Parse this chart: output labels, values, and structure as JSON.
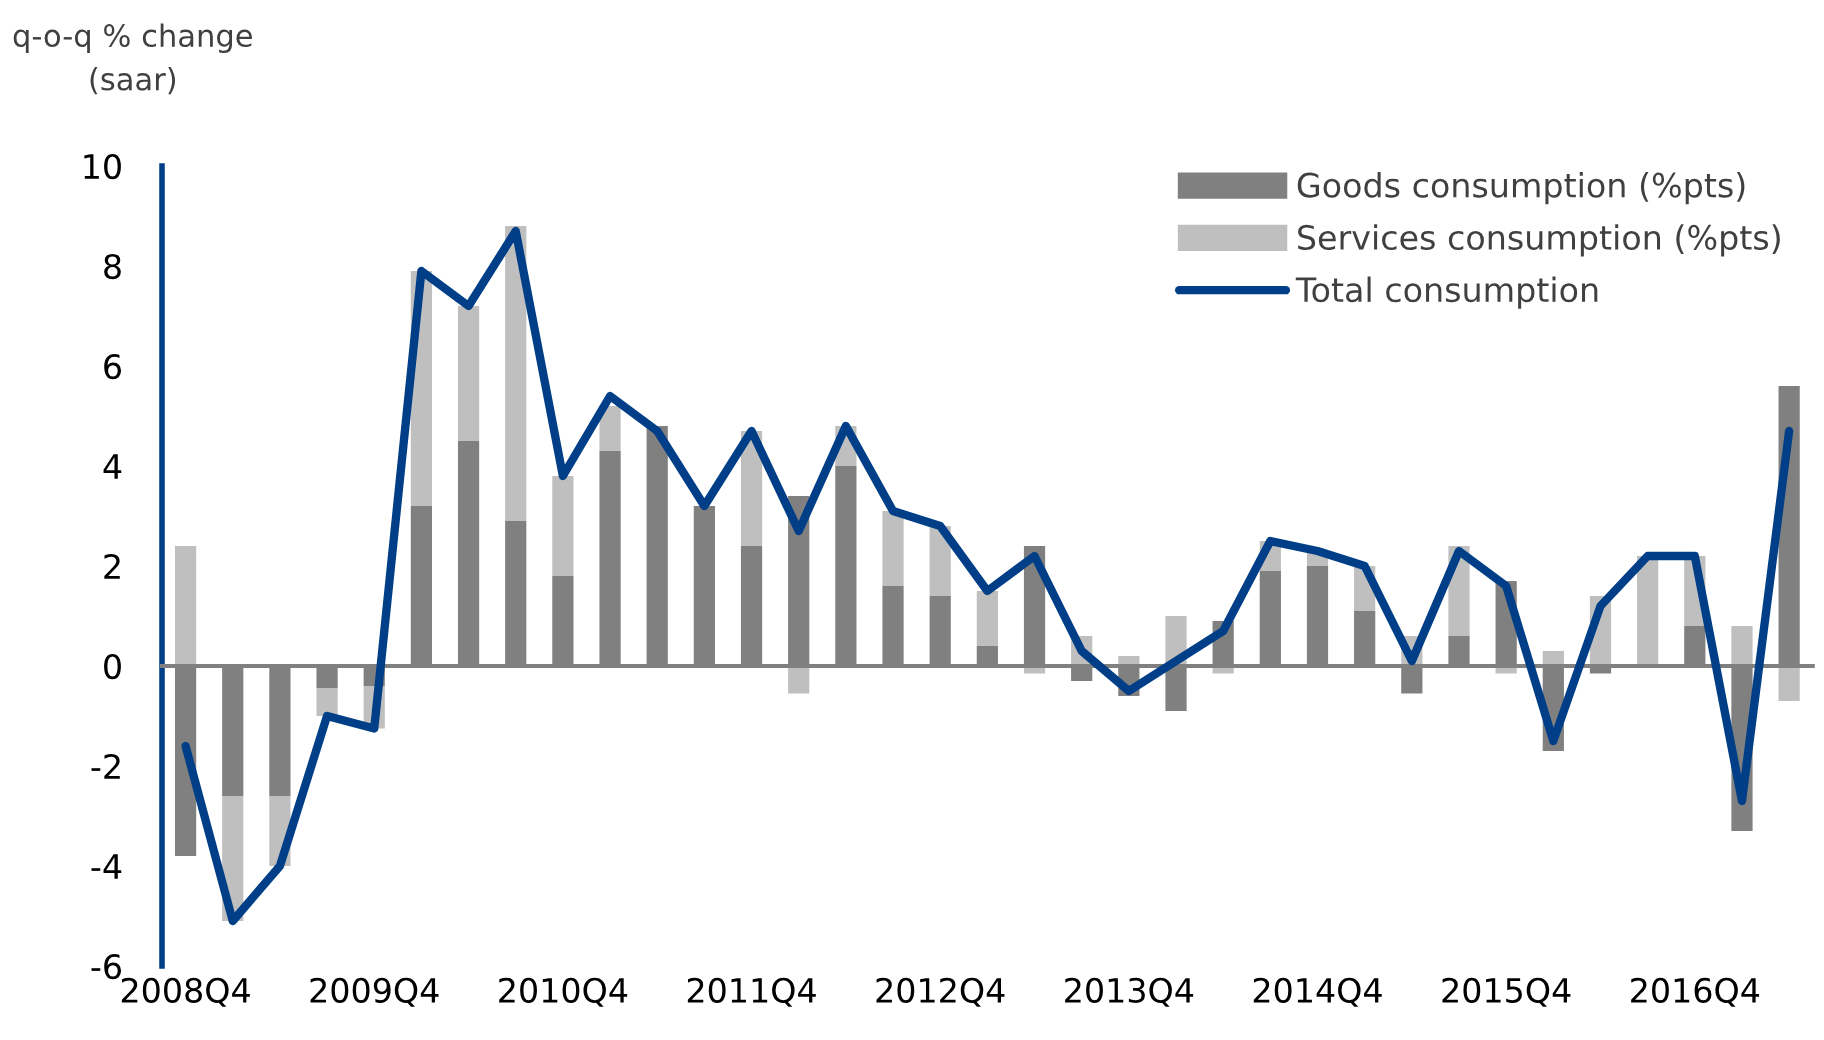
{
  "chart_data": {
    "type": "bar",
    "stacked": true,
    "ylabel": "q-o-q % change\n(saar)",
    "categories": [
      "2008Q4",
      null,
      null,
      null,
      "2009Q4",
      null,
      null,
      null,
      "2010Q4",
      null,
      null,
      null,
      "2011Q4",
      null,
      null,
      null,
      "2012Q4",
      null,
      null,
      null,
      "2013Q4",
      null,
      null,
      null,
      "2014Q4",
      null,
      null,
      null,
      "2015Q4",
      null,
      null,
      null,
      "2016Q4",
      null,
      null
    ],
    "series": [
      {
        "name": "Goods consumption (%pts)",
        "color": "#808080",
        "values": [
          -3.8,
          -2.6,
          -2.6,
          -0.45,
          -0.4,
          3.2,
          4.5,
          2.9,
          1.8,
          4.3,
          4.8,
          3.2,
          2.4,
          3.4,
          4.0,
          1.6,
          1.4,
          0.4,
          2.4,
          -0.3,
          -0.6,
          -0.9,
          0.9,
          1.9,
          2.0,
          1.1,
          -0.55,
          0.6,
          1.7,
          -1.7,
          -0.15,
          0.0,
          0.8,
          -3.3,
          5.6
        ]
      },
      {
        "name": "Services consumption (%pts)",
        "color": "#bfbfbf",
        "values": [
          2.4,
          -2.5,
          -1.4,
          -0.55,
          -0.85,
          4.7,
          2.7,
          5.9,
          2.0,
          0.9,
          0.0,
          0.0,
          2.3,
          -0.55,
          0.8,
          1.5,
          1.4,
          1.1,
          -0.15,
          0.6,
          0.2,
          1.0,
          -0.15,
          0.6,
          0.3,
          0.9,
          0.6,
          1.8,
          -0.15,
          0.3,
          1.4,
          2.2,
          1.4,
          0.8,
          -0.7
        ]
      },
      {
        "name": "Total consumption",
        "type": "line",
        "color": "#003f87",
        "values": [
          -1.6,
          -5.1,
          -4.0,
          -1.0,
          -1.25,
          7.9,
          7.2,
          8.7,
          3.8,
          5.4,
          4.7,
          3.2,
          4.7,
          2.7,
          4.8,
          3.1,
          2.8,
          1.5,
          2.2,
          0.3,
          -0.5,
          0.1,
          0.7,
          2.5,
          2.3,
          2.0,
          0.1,
          2.3,
          1.6,
          -1.5,
          1.2,
          2.2,
          2.2,
          -2.7,
          4.7
        ]
      }
    ],
    "ylim": [
      -6,
      10
    ],
    "yticks": [
      -6,
      -4,
      -2,
      0,
      2,
      4,
      6,
      8,
      10
    ],
    "legend": "top right",
    "marker": "none",
    "line_style": "solid"
  }
}
